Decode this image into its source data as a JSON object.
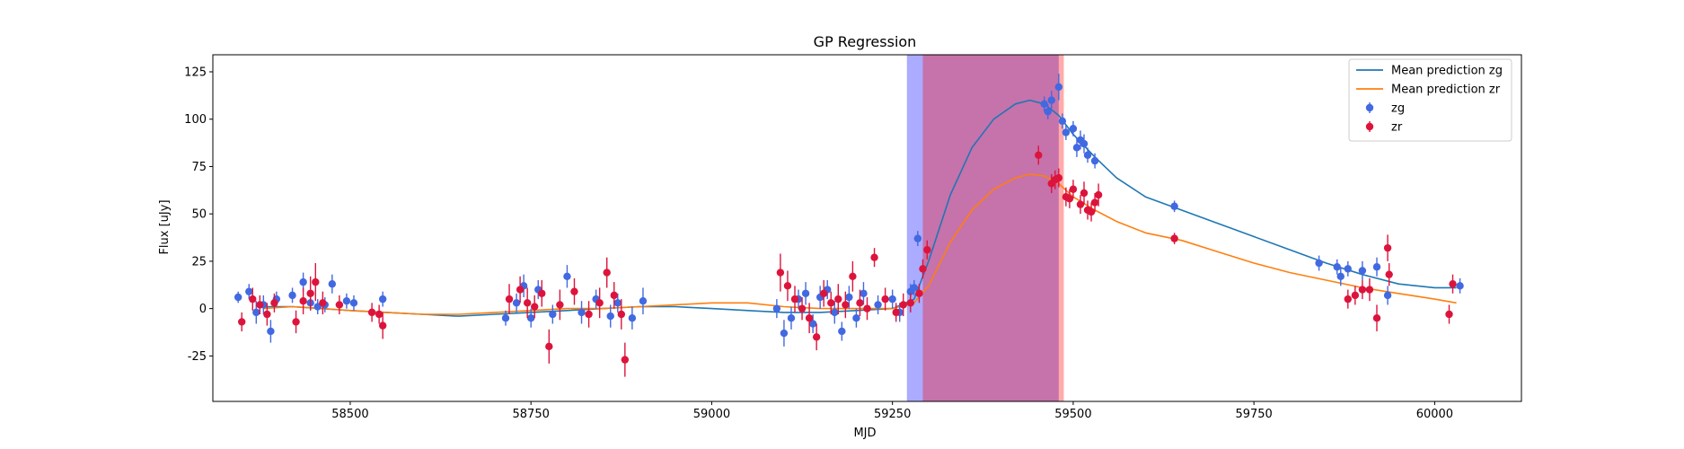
{
  "chart_data": {
    "type": "scatter",
    "title": "GP Regression",
    "xlabel": "MJD",
    "ylabel": "Flux [uJy]",
    "xlim": [
      58310,
      60120
    ],
    "ylim": [
      -49,
      134
    ],
    "xticks": [
      58500,
      58750,
      59000,
      59250,
      59500,
      59750,
      60000
    ],
    "yticks": [
      -25,
      0,
      25,
      50,
      75,
      100,
      125
    ],
    "legend_position": "top-right",
    "bands": [
      {
        "name": "zg",
        "x_range": [
          59270,
          59480
        ],
        "color": "#0000ff",
        "opacity": 0.33
      },
      {
        "name": "zr",
        "x_range": [
          59292,
          59487
        ],
        "color": "#ff0000",
        "opacity": 0.33
      }
    ],
    "lines": [
      {
        "name": "Mean prediction zg",
        "color": "#1f77b4",
        "x": [
          58380,
          58420,
          58460,
          58500,
          58550,
          58600,
          58650,
          58700,
          58750,
          58800,
          58850,
          58900,
          58950,
          59000,
          59050,
          59100,
          59150,
          59200,
          59250,
          59280,
          59300,
          59330,
          59360,
          59390,
          59420,
          59440,
          59460,
          59480,
          59500,
          59530,
          59560,
          59600,
          59650,
          59700,
          59750,
          59800,
          59850,
          59900,
          59950,
          60000,
          60030
        ],
        "y": [
          1,
          1,
          0,
          -1,
          -2,
          -3,
          -4,
          -3,
          -2,
          -1,
          0,
          1,
          1,
          0,
          -1,
          -2,
          -2,
          -1,
          0,
          5,
          25,
          60,
          85,
          100,
          108,
          110,
          108,
          102,
          92,
          80,
          69,
          59,
          52,
          45,
          38,
          31,
          24,
          18,
          13,
          11,
          11
        ]
      },
      {
        "name": "Mean prediction zr",
        "color": "#ff7f0e",
        "x": [
          58380,
          58420,
          58460,
          58500,
          58550,
          58600,
          58650,
          58700,
          58750,
          58800,
          58850,
          58900,
          58950,
          59000,
          59050,
          59100,
          59150,
          59200,
          59250,
          59280,
          59300,
          59330,
          59360,
          59390,
          59420,
          59440,
          59460,
          59480,
          59500,
          59530,
          59560,
          59600,
          59650,
          59700,
          59750,
          59800,
          59850,
          59900,
          59950,
          60000,
          60030
        ],
        "y": [
          0,
          1,
          0,
          -1,
          -2,
          -3,
          -3,
          -2,
          -1,
          0,
          0,
          1,
          2,
          3,
          3,
          1,
          0,
          0,
          0,
          3,
          12,
          35,
          52,
          63,
          69,
          71,
          70,
          66,
          59,
          52,
          46,
          40,
          36,
          30,
          24,
          19,
          15,
          11,
          8,
          5,
          3
        ]
      }
    ],
    "series": [
      {
        "name": "zg",
        "color": "#4169e1",
        "x": [
          58345,
          58360,
          58370,
          58380,
          58390,
          58398,
          58420,
          58435,
          58445,
          58455,
          58465,
          58475,
          58495,
          58505,
          58545,
          58715,
          58730,
          58740,
          58750,
          58760,
          58780,
          58800,
          58820,
          58840,
          58860,
          58870,
          58890,
          58905,
          59090,
          59100,
          59110,
          59120,
          59130,
          59140,
          59150,
          59160,
          59170,
          59180,
          59190,
          59200,
          59210,
          59230,
          59250,
          59260,
          59275,
          59280,
          59285,
          59460,
          59465,
          59470,
          59480,
          59485,
          59490,
          59500,
          59505,
          59510,
          59515,
          59520,
          59530,
          59640,
          59840,
          59865,
          59870,
          59880,
          59900,
          59920,
          59935,
          60035
        ],
        "y": [
          6,
          9,
          -2,
          2,
          -12,
          5,
          7,
          14,
          3,
          1,
          2,
          13,
          4,
          3,
          5,
          -5,
          3,
          12,
          -5,
          10,
          -3,
          17,
          -2,
          5,
          -4,
          3,
          -5,
          4,
          0,
          -13,
          -5,
          5,
          8,
          -8,
          6,
          10,
          -2,
          -12,
          6,
          -5,
          8,
          2,
          5,
          -2,
          9,
          11,
          37,
          108,
          104,
          110,
          117,
          99,
          93,
          95,
          85,
          89,
          87,
          81,
          78,
          54,
          24,
          22,
          17,
          21,
          20,
          22,
          7,
          12
        ],
        "yerr": [
          3,
          4,
          6,
          5,
          6,
          4,
          4,
          5,
          4,
          4,
          4,
          5,
          4,
          4,
          4,
          4,
          5,
          6,
          5,
          5,
          5,
          6,
          6,
          5,
          6,
          5,
          6,
          7,
          5,
          7,
          6,
          5,
          6,
          5,
          6,
          5,
          6,
          5,
          6,
          5,
          6,
          5,
          5,
          5,
          4,
          4,
          4,
          4,
          4,
          5,
          7,
          4,
          4,
          4,
          5,
          5,
          5,
          4,
          4,
          3,
          4,
          4,
          5,
          4,
          5,
          5,
          5,
          4
        ]
      },
      {
        "name": "zr",
        "color": "#dc143c",
        "x": [
          58350,
          58365,
          58375,
          58385,
          58395,
          58425,
          58435,
          58445,
          58452,
          58462,
          58485,
          58530,
          58540,
          58545,
          58720,
          58735,
          58745,
          58755,
          58765,
          58775,
          58790,
          58810,
          58830,
          58845,
          58855,
          58865,
          58875,
          58880,
          59095,
          59105,
          59115,
          59125,
          59135,
          59145,
          59155,
          59165,
          59175,
          59185,
          59195,
          59205,
          59215,
          59225,
          59240,
          59255,
          59265,
          59275,
          59287,
          59292,
          59298,
          59452,
          59470,
          59475,
          59480,
          59490,
          59495,
          59500,
          59510,
          59515,
          59520,
          59525,
          59530,
          59535,
          59640,
          59880,
          59890,
          59900,
          59910,
          59920,
          59935,
          59937,
          60020,
          60025
        ],
        "y": [
          -7,
          5,
          2,
          -3,
          3,
          -7,
          4,
          8,
          14,
          3,
          2,
          -2,
          -3,
          -9,
          5,
          10,
          3,
          1,
          8,
          -20,
          2,
          9,
          -3,
          3,
          19,
          7,
          -3,
          -27,
          19,
          12,
          5,
          0,
          -5,
          -15,
          8,
          3,
          5,
          2,
          17,
          3,
          0,
          27,
          5,
          -2,
          2,
          3,
          8,
          21,
          31,
          81,
          66,
          68,
          69,
          59,
          58,
          63,
          55,
          61,
          52,
          51,
          56,
          60,
          37,
          5,
          7,
          10,
          10,
          -5,
          32,
          18,
          -3,
          13
        ],
        "yerr": [
          5,
          6,
          5,
          6,
          5,
          6,
          7,
          9,
          10,
          6,
          5,
          5,
          5,
          7,
          8,
          7,
          8,
          6,
          7,
          9,
          8,
          7,
          7,
          8,
          8,
          7,
          8,
          9,
          10,
          8,
          7,
          6,
          8,
          7,
          7,
          6,
          8,
          7,
          8,
          7,
          6,
          5,
          6,
          5,
          6,
          5,
          5,
          5,
          5,
          5,
          5,
          5,
          5,
          5,
          5,
          5,
          5,
          6,
          5,
          5,
          5,
          6,
          3,
          5,
          5,
          5,
          6,
          7,
          7,
          6,
          5,
          5
        ]
      }
    ]
  }
}
